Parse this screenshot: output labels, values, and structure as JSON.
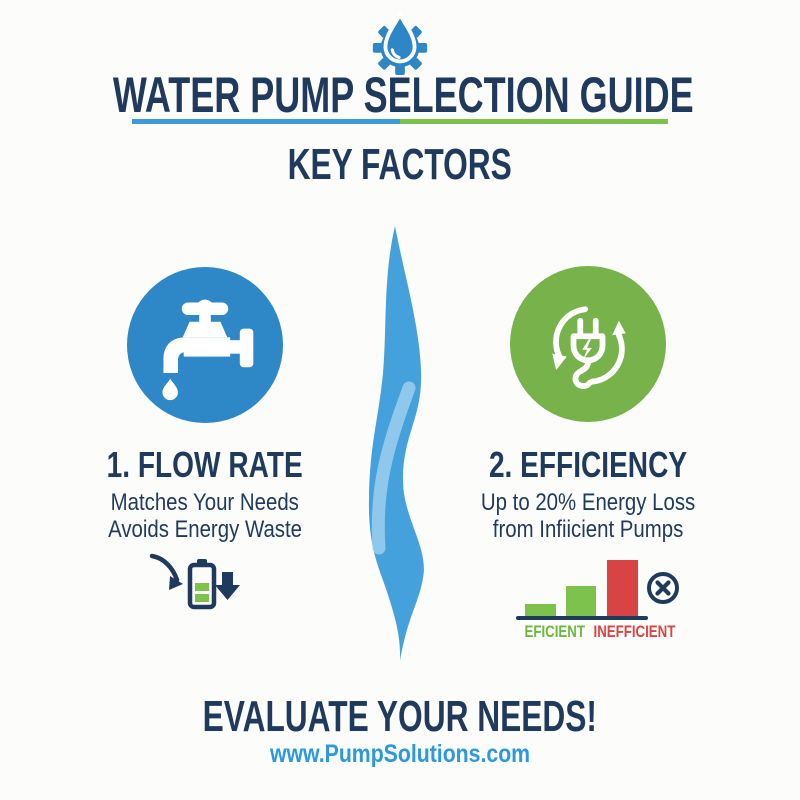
{
  "header": {
    "logo_icon": "gear-waterdrop-icon",
    "title": "WATER PUMP SELECTION GUIDE",
    "subtitle": "KEY FACTORS",
    "underline_left_color": "#3d9bd9",
    "underline_right_color": "#7cc24d"
  },
  "factors": {
    "flow_rate": {
      "title": "1. FLOW RATE",
      "line1": "Matches Your Needs",
      "line2": "Avoids Energy Waste",
      "icon": "faucet-icon",
      "circle_color": "#2e87c6",
      "detail_icon": "battery-with-arrows-icon"
    },
    "efficiency": {
      "title": "2. EFFICIENCY",
      "line1": "Up to 20% Energy Loss",
      "line2": "from Infiicient Pumps",
      "icon": "plug-recycle-icon",
      "circle_color": "#77b24a"
    }
  },
  "chart_data": {
    "type": "bar",
    "categories": [
      "efficient-low",
      "efficient-mid",
      "inefficient-high"
    ],
    "values": [
      16,
      34,
      60
    ],
    "colors": [
      "#7cc24c",
      "#7cc24c",
      "#d84444"
    ],
    "labels": [
      {
        "text": "EFICIENT",
        "color": "#6cb840"
      },
      {
        "text": "INEFFICIENT",
        "color": "#d84444"
      }
    ],
    "title": "",
    "xlabel": "",
    "ylabel": "",
    "axis": "none",
    "annotation_icon": "x-circle-icon",
    "baseline_color": "#1f3a5c"
  },
  "footer": {
    "cta": "EVALUATE YOUR NEEDS!",
    "url": "www.PumpSolutions.com"
  },
  "colors": {
    "navy_text": "#1f3a5c",
    "blue_accent": "#2e87c6",
    "green_accent": "#77b24a",
    "red_accent": "#d84444",
    "ribbon_blue": "#45a1dc",
    "ribbon_light": "#a9d6f0",
    "link_blue": "#2b99dc",
    "background": "#fcfcfa"
  }
}
